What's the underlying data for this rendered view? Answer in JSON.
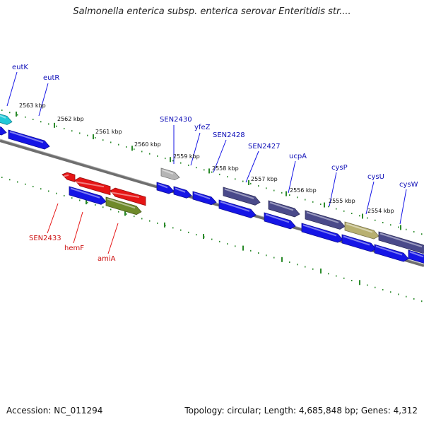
{
  "title": "Salmonella enterica subsp. enterica serovar Enteritidis str....",
  "accession": "Accession: NC_011294",
  "summary": "Topology: circular; Length: 4,685,848 bp; Genes: 4,312",
  "colors": {
    "forward_cds": "#1515e6",
    "reverse_cds": "#e61515",
    "highlight_purple": "#4a4a8a",
    "highlight_olive": "#6f8a2a",
    "highlight_khaki": "#b8b070",
    "grey_feature": "#b5b5b5",
    "cyan_feature": "#22c8d8",
    "backbone": "#6e6e6e",
    "tick": "#2a8a2a"
  },
  "scale_labels": [
    "2563 kbp",
    "2562 kbp",
    "2561 kbp",
    "2560 kbp",
    "2559 kbp",
    "2558 kbp",
    "2557 kbp",
    "2556 kbp",
    "2555 kbp",
    "2554 kbp"
  ],
  "forward_gene_labels": [
    "eutK",
    "eutR",
    "SEN2430",
    "yfeZ",
    "SEN2428",
    "SEN2427",
    "ucpA",
    "cysP",
    "cysU",
    "cysW"
  ],
  "reverse_gene_labels": [
    "SEN2433",
    "hemF",
    "amiA"
  ]
}
